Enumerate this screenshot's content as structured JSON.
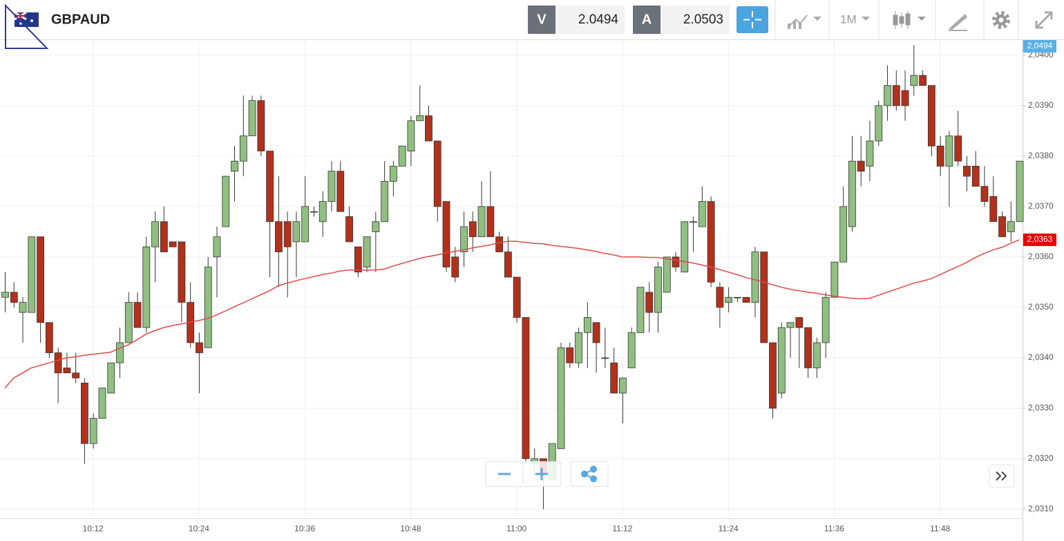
{
  "toolbar": {
    "symbol": "GBPAUD",
    "bid_label": "V",
    "bid": 2.0494,
    "ask_label": "A",
    "ask": 2.0503,
    "timeframe": "1M"
  },
  "chart_data": {
    "type": "candlestick",
    "categories": [
      null,
      null,
      null,
      null,
      null,
      null,
      null,
      null,
      null,
      null,
      "10:12",
      null,
      null,
      null,
      null,
      null,
      null,
      null,
      null,
      null,
      null,
      null,
      "10:24",
      null,
      null,
      null,
      null,
      null,
      null,
      null,
      null,
      null,
      null,
      null,
      "10:36",
      null,
      null,
      null,
      null,
      null,
      null,
      null,
      null,
      null,
      null,
      null,
      "10:48",
      null,
      null,
      null,
      null,
      null,
      null,
      null,
      null,
      null,
      null,
      null,
      "11:00",
      null,
      null,
      null,
      null,
      null,
      null,
      null,
      null,
      null,
      null,
      null,
      "11:12",
      null,
      null,
      null,
      null,
      null,
      null,
      null,
      null,
      null,
      null,
      null,
      "11:24",
      null,
      null,
      null,
      null,
      null,
      null,
      null,
      null,
      null,
      null,
      null,
      "11:36",
      null,
      null,
      null,
      null,
      null,
      null,
      null,
      null,
      null,
      null,
      null,
      "11:48",
      null,
      null,
      null,
      null,
      null,
      null,
      null,
      null,
      null
    ],
    "open": [
      2.0352,
      2.0353,
      2.0349,
      2.0349,
      2.0364,
      2.0347,
      2.0341,
      2.0338,
      2.0337,
      2.0335,
      2.0323,
      2.0328,
      2.0333,
      2.0339,
      2.0343,
      2.0351,
      2.0346,
      2.0362,
      2.0367,
      2.0363,
      2.0363,
      2.0351,
      2.0343,
      2.0342,
      2.036,
      2.0366,
      2.0377,
      2.0379,
      2.0384,
      2.0391,
      2.0381,
      2.0367,
      2.0367,
      2.0363,
      2.0363,
      2.0369,
      2.0367,
      2.0371,
      2.0377,
      2.0368,
      2.0362,
      2.0358,
      2.0365,
      2.0367,
      2.0375,
      2.0378,
      2.0381,
      2.0387,
      2.0388,
      2.0383,
      2.0371,
      2.036,
      2.0361,
      2.0367,
      2.0364,
      2.037,
      2.0364,
      2.0361,
      2.0356,
      2.0348,
      2.0319,
      2.032,
      2.0316,
      2.0322,
      2.0342,
      2.0339,
      2.0345,
      2.0347,
      2.034,
      2.0339,
      2.0333,
      2.0338,
      2.0345,
      2.0353,
      2.0349,
      2.0353,
      2.036,
      2.0357,
      2.0367,
      2.0366,
      2.0371,
      2.0354,
      2.0351,
      2.0352,
      2.0352,
      2.0351,
      2.0361,
      2.0343,
      2.0333,
      2.0346,
      2.0348,
      2.0346,
      2.0338,
      2.0343,
      2.0352,
      2.0359,
      2.0366,
      2.0379,
      2.0378,
      2.0383,
      2.039,
      2.0394,
      2.0393,
      2.0394,
      2.0396,
      2.0394,
      2.0382,
      2.0378,
      2.0384,
      2.0378,
      2.0378,
      2.0374,
      2.0372,
      2.0368,
      2.0365,
      2.0367
    ],
    "high": [
      2.0357,
      2.0355,
      2.0352,
      2.0364,
      2.0364,
      2.0347,
      2.0342,
      2.0341,
      2.0341,
      2.0336,
      2.0329,
      2.0334,
      2.0339,
      2.0346,
      2.0353,
      2.0353,
      2.0364,
      2.0369,
      2.037,
      2.0363,
      2.0363,
      2.0355,
      2.0345,
      2.036,
      2.0366,
      2.0376,
      2.0382,
      2.0392,
      2.0392,
      2.0392,
      2.0381,
      2.0376,
      2.0369,
      2.0369,
      2.0376,
      2.037,
      2.0373,
      2.0379,
      2.0379,
      2.037,
      2.0362,
      2.0364,
      2.0369,
      2.0379,
      2.0379,
      2.0382,
      2.0388,
      2.0394,
      2.039,
      2.0383,
      2.0371,
      2.0362,
      2.0369,
      2.0369,
      2.0375,
      2.0377,
      2.0365,
      2.0364,
      2.0356,
      2.0348,
      2.0322,
      2.032,
      2.0323,
      2.0343,
      2.0343,
      2.0346,
      2.0351,
      2.0347,
      2.0346,
      2.0342,
      2.0336,
      2.0346,
      2.0354,
      2.0355,
      2.0359,
      2.036,
      2.0361,
      2.0367,
      2.0368,
      2.0374,
      2.0372,
      2.0355,
      2.0354,
      2.0352,
      2.0352,
      2.0362,
      2.0361,
      2.0343,
      2.0347,
      2.0347,
      2.0348,
      2.0346,
      2.0344,
      2.0353,
      2.0359,
      2.0374,
      2.0384,
      2.0384,
      2.0387,
      2.0391,
      2.0398,
      2.0397,
      2.0397,
      2.0402,
      2.0397,
      2.0394,
      2.0384,
      2.0385,
      2.0389,
      2.038,
      2.0381,
      2.0378,
      2.0376,
      2.0369,
      2.0371,
      2.0379
    ],
    "low": [
      2.0349,
      2.035,
      2.0343,
      2.0349,
      2.0343,
      2.034,
      2.0331,
      2.0337,
      2.0335,
      2.0319,
      2.0322,
      2.0328,
      2.0333,
      2.0336,
      2.0343,
      2.0346,
      2.0345,
      2.0355,
      2.0361,
      2.0362,
      2.0347,
      2.0342,
      2.0333,
      2.0342,
      2.0352,
      2.0366,
      2.0371,
      2.0376,
      2.0384,
      2.038,
      2.0356,
      2.0354,
      2.0352,
      2.0356,
      2.0363,
      2.0368,
      2.0364,
      2.0369,
      2.0369,
      2.0363,
      2.0356,
      2.0357,
      2.0357,
      2.0367,
      2.0372,
      2.0378,
      2.0378,
      2.0387,
      2.0383,
      2.0367,
      2.0357,
      2.0355,
      2.0358,
      2.0361,
      2.0364,
      2.0364,
      2.0361,
      2.0356,
      2.0347,
      2.0319,
      2.0316,
      2.031,
      2.0316,
      2.0322,
      2.0338,
      2.0338,
      2.0338,
      2.0337,
      2.0338,
      2.0333,
      2.0327,
      2.0338,
      2.0345,
      2.0345,
      2.0345,
      2.0353,
      2.0357,
      2.0357,
      2.0361,
      2.0366,
      2.0354,
      2.0346,
      2.0349,
      2.0351,
      2.0351,
      2.0348,
      2.0343,
      2.0328,
      2.0332,
      2.034,
      2.0338,
      2.0336,
      2.0336,
      2.034,
      2.0352,
      2.0359,
      2.0365,
      2.0374,
      2.0375,
      2.0382,
      2.0387,
      2.0389,
      2.0387,
      2.0392,
      2.0394,
      2.038,
      2.0376,
      2.037,
      2.0378,
      2.0373,
      2.0374,
      2.037,
      2.0367,
      2.0364,
      2.0363,
      2.0367
    ],
    "close": [
      2.0353,
      2.0351,
      2.0351,
      2.0364,
      2.0347,
      2.0341,
      2.0337,
      2.0337,
      2.0336,
      2.0323,
      2.0328,
      2.0334,
      2.0339,
      2.0343,
      2.0351,
      2.0346,
      2.0362,
      2.0367,
      2.0361,
      2.0362,
      2.0351,
      2.0343,
      2.0341,
      2.0358,
      2.0364,
      2.0376,
      2.0379,
      2.0384,
      2.0391,
      2.0381,
      2.0367,
      2.0361,
      2.0362,
      2.0367,
      2.037,
      2.0369,
      2.0371,
      2.0377,
      2.0369,
      2.0363,
      2.0357,
      2.0364,
      2.0367,
      2.0375,
      2.0378,
      2.0382,
      2.0387,
      2.0388,
      2.0383,
      2.037,
      2.0358,
      2.0356,
      2.0366,
      2.0364,
      2.037,
      2.0364,
      2.0361,
      2.0356,
      2.0348,
      2.032,
      2.032,
      2.0317,
      2.0323,
      2.0342,
      2.0339,
      2.0345,
      2.0348,
      2.0343,
      2.034,
      2.0333,
      2.0336,
      2.0345,
      2.0354,
      2.0349,
      2.0358,
      2.036,
      2.0358,
      2.0367,
      2.0367,
      2.0371,
      2.0355,
      2.035,
      2.0352,
      2.0352,
      2.0351,
      2.0361,
      2.0343,
      2.033,
      2.0346,
      2.0347,
      2.0346,
      2.0338,
      2.0343,
      2.0352,
      2.0359,
      2.037,
      2.0379,
      2.0377,
      2.0383,
      2.039,
      2.0394,
      2.039,
      2.039,
      2.0396,
      2.0394,
      2.0382,
      2.0378,
      2.0384,
      2.0379,
      2.0376,
      2.0374,
      2.0371,
      2.0367,
      2.0364,
      2.0367,
      2.0379
    ],
    "up_color": "#90bf82",
    "down_color": "#b3301a",
    "ma": {
      "color": "#e04848",
      "last_label": "2,0363",
      "values": [
        2.0334,
        2.0336,
        2.0337,
        2.0338,
        2.03385,
        2.0339,
        2.03395,
        2.034,
        2.03402,
        2.03405,
        2.03407,
        2.03409,
        2.03411,
        2.03419,
        2.03426,
        2.03436,
        2.03447,
        2.03454,
        2.0346,
        2.03464,
        2.03467,
        2.03471,
        2.03474,
        2.03478,
        2.03485,
        2.03493,
        2.03501,
        2.03509,
        2.03517,
        2.03525,
        2.03533,
        2.03543,
        2.03548,
        2.03553,
        2.03557,
        2.03561,
        2.03565,
        2.03568,
        2.03572,
        2.03574,
        2.03574,
        2.03574,
        2.03574,
        2.03576,
        2.03582,
        2.03587,
        2.03592,
        2.03597,
        2.03601,
        2.03604,
        2.03608,
        2.03611,
        2.03614,
        2.03618,
        2.03621,
        2.03624,
        2.03628,
        2.03631,
        2.03631,
        2.03629,
        2.03627,
        2.03626,
        2.03623,
        2.03621,
        2.03619,
        2.03617,
        2.03614,
        2.03611,
        2.03607,
        2.03604,
        2.036,
        2.036,
        2.036,
        2.03599,
        2.03599,
        2.03596,
        2.03594,
        2.03591,
        2.03588,
        2.03584,
        2.0358,
        2.03575,
        2.0357,
        2.03565,
        2.03559,
        2.03555,
        2.0355,
        2.03545,
        2.0354,
        2.03536,
        2.03533,
        2.0353,
        2.03528,
        2.03525,
        2.03522,
        2.0352,
        2.03518,
        2.03517,
        2.03518,
        2.03524,
        2.0353,
        2.03536,
        2.03542,
        2.03548,
        2.03552,
        2.03557,
        2.03565,
        2.03573,
        2.03581,
        2.03589,
        2.03599,
        2.03607,
        2.03614,
        2.03619,
        2.03627,
        2.03634
      ]
    },
    "price_tag": "2,0494",
    "ylim": [
      2.03082,
      2.0403
    ],
    "yticks": [
      {
        "value": 2.031,
        "label": "2,0310"
      },
      {
        "value": 2.032,
        "label": "2,0320"
      },
      {
        "value": 2.033,
        "label": "2,0330"
      },
      {
        "value": 2.034,
        "label": "2,0340"
      },
      {
        "value": 2.035,
        "label": "2,0350"
      },
      {
        "value": 2.036,
        "label": "2,0360"
      },
      {
        "value": 2.037,
        "label": "2,0370"
      },
      {
        "value": 2.038,
        "label": "2,0380"
      },
      {
        "value": 2.039,
        "label": "2,0390"
      },
      {
        "value": 2.04,
        "label": "2,0400"
      }
    ],
    "grid": true
  }
}
